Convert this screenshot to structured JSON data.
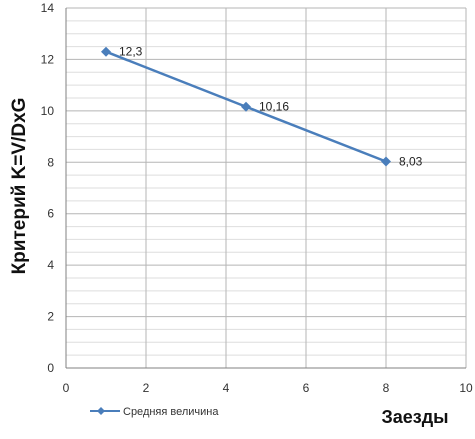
{
  "chart_data": {
    "type": "line",
    "title": "",
    "xlabel": "Заезды",
    "ylabel": "Критерий  K=V/DxG",
    "xlim": [
      0,
      10
    ],
    "ylim": [
      0,
      14
    ],
    "x_ticks": [
      "0",
      "2",
      "4",
      "6",
      "8",
      "10"
    ],
    "y_ticks": [
      "0",
      "2",
      "4",
      "6",
      "8",
      "10",
      "12",
      "14"
    ],
    "grid": true,
    "legend_position": "bottom-left",
    "series": [
      {
        "name": "Средняя величина",
        "color": "#4a7ebb",
        "marker": "diamond",
        "points": [
          {
            "x": 1,
            "y": 12.3,
            "label": "12,3"
          },
          {
            "x": 4.5,
            "y": 10.16,
            "label": "10,16"
          },
          {
            "x": 8,
            "y": 8.03,
            "label": "8,03"
          }
        ]
      }
    ]
  }
}
